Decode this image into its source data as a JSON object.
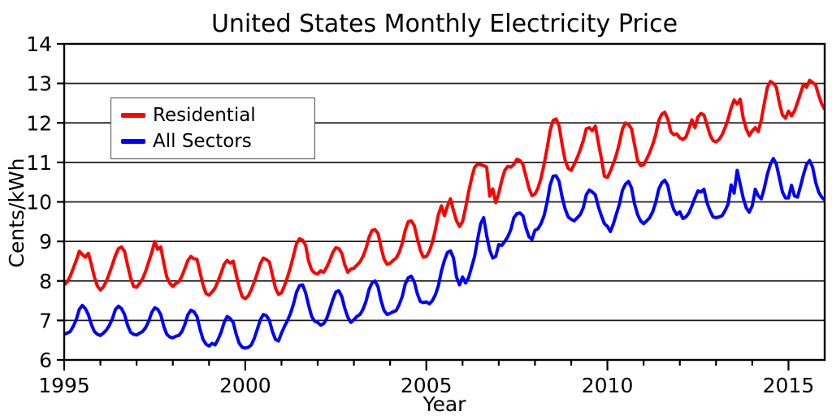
{
  "chart_data": {
    "type": "line",
    "title": "United States Monthly Electricity Price",
    "xlabel": "Year",
    "ylabel": "Cents/kWh",
    "xlim": [
      1995,
      2016
    ],
    "ylim": [
      6,
      14
    ],
    "yticks": [
      6,
      7,
      8,
      9,
      10,
      11,
      12,
      13,
      14
    ],
    "xticks_major": [
      1995,
      2000,
      2005,
      2010,
      2015
    ],
    "xticks_minor": [
      1996,
      1997,
      1998,
      1999,
      2001,
      2002,
      2003,
      2004,
      2006,
      2007,
      2008,
      2009,
      2011,
      2012,
      2013,
      2014
    ],
    "grid": "horizontal-only",
    "grid_color": "#1a1a1a",
    "spine_color": "#000000",
    "legend_position": "upper-left",
    "x_start": 1995.0,
    "x_step_years": 0.083333,
    "series": [
      {
        "name": "Residential",
        "color": "#ff0000",
        "values": [
          7.9,
          7.98,
          8.12,
          8.32,
          8.52,
          8.75,
          8.67,
          8.6,
          8.7,
          8.42,
          8.1,
          7.87,
          7.77,
          7.85,
          8.0,
          8.2,
          8.42,
          8.65,
          8.82,
          8.86,
          8.75,
          8.4,
          8.08,
          7.86,
          7.84,
          7.94,
          8.06,
          8.25,
          8.48,
          8.72,
          9.0,
          8.8,
          8.86,
          8.45,
          8.1,
          7.94,
          7.86,
          7.94,
          7.98,
          8.12,
          8.32,
          8.52,
          8.62,
          8.56,
          8.55,
          8.22,
          7.9,
          7.68,
          7.64,
          7.72,
          7.82,
          8.0,
          8.2,
          8.42,
          8.52,
          8.45,
          8.5,
          8.16,
          7.84,
          7.6,
          7.55,
          7.62,
          7.78,
          7.98,
          8.2,
          8.44,
          8.58,
          8.54,
          8.48,
          8.15,
          7.82,
          7.66,
          7.7,
          7.88,
          8.1,
          8.35,
          8.65,
          8.95,
          9.07,
          9.03,
          8.9,
          8.5,
          8.28,
          8.2,
          8.18,
          8.26,
          8.22,
          8.35,
          8.52,
          8.72,
          8.84,
          8.82,
          8.7,
          8.4,
          8.22,
          8.3,
          8.32,
          8.4,
          8.48,
          8.62,
          8.82,
          9.1,
          9.28,
          9.3,
          9.2,
          8.85,
          8.55,
          8.42,
          8.45,
          8.52,
          8.58,
          8.72,
          8.95,
          9.28,
          9.5,
          9.52,
          9.4,
          9.08,
          8.78,
          8.6,
          8.62,
          8.75,
          8.98,
          9.3,
          9.68,
          9.9,
          9.65,
          9.9,
          10.08,
          9.78,
          9.52,
          9.38,
          9.5,
          9.85,
          10.25,
          10.6,
          10.88,
          10.96,
          10.94,
          10.92,
          10.88,
          10.15,
          10.33,
          9.98,
          10.22,
          10.55,
          10.8,
          10.9,
          10.88,
          10.95,
          11.08,
          11.05,
          10.95,
          10.65,
          10.35,
          10.16,
          10.2,
          10.35,
          10.6,
          10.95,
          11.35,
          11.8,
          12.06,
          12.1,
          11.92,
          11.45,
          11.05,
          10.85,
          10.8,
          10.95,
          11.12,
          11.32,
          11.55,
          11.85,
          11.88,
          11.8,
          11.92,
          11.5,
          11.1,
          10.65,
          10.62,
          10.78,
          10.98,
          11.2,
          11.5,
          11.85,
          12.0,
          11.96,
          11.85,
          11.45,
          11.05,
          10.92,
          10.94,
          11.08,
          11.25,
          11.45,
          11.7,
          12.05,
          12.22,
          12.27,
          12.1,
          11.78,
          11.7,
          11.72,
          11.62,
          11.58,
          11.64,
          11.85,
          12.08,
          11.88,
          12.15,
          12.24,
          12.2,
          11.95,
          11.7,
          11.55,
          11.52,
          11.58,
          11.7,
          11.88,
          12.1,
          12.38,
          12.58,
          12.48,
          12.6,
          12.12,
          11.85,
          11.68,
          11.8,
          11.88,
          11.78,
          12.08,
          12.5,
          12.9,
          13.05,
          13.0,
          12.9,
          12.5,
          12.2,
          12.12,
          12.3,
          12.18,
          12.3,
          12.52,
          12.75,
          12.98,
          12.9,
          13.08,
          13.02,
          12.96,
          12.7,
          12.48,
          12.35
        ]
      },
      {
        "name": "All Sectors",
        "color": "#0000ff",
        "values": [
          6.65,
          6.68,
          6.72,
          6.85,
          7.02,
          7.28,
          7.38,
          7.3,
          7.15,
          6.9,
          6.72,
          6.65,
          6.62,
          6.68,
          6.76,
          6.88,
          7.05,
          7.28,
          7.36,
          7.3,
          7.15,
          6.88,
          6.7,
          6.65,
          6.63,
          6.68,
          6.72,
          6.82,
          6.98,
          7.2,
          7.32,
          7.28,
          7.15,
          6.85,
          6.65,
          6.58,
          6.56,
          6.6,
          6.62,
          6.72,
          6.9,
          7.15,
          7.26,
          7.22,
          7.1,
          6.78,
          6.52,
          6.4,
          6.35,
          6.42,
          6.38,
          6.52,
          6.7,
          6.95,
          7.1,
          7.05,
          6.95,
          6.65,
          6.42,
          6.32,
          6.3,
          6.32,
          6.38,
          6.55,
          6.78,
          7.02,
          7.15,
          7.12,
          7.0,
          6.72,
          6.52,
          6.48,
          6.68,
          6.85,
          7.0,
          7.18,
          7.42,
          7.72,
          7.88,
          7.9,
          7.7,
          7.38,
          7.1,
          6.98,
          6.95,
          6.88,
          6.92,
          7.05,
          7.28,
          7.52,
          7.72,
          7.75,
          7.6,
          7.3,
          7.08,
          6.95,
          7.02,
          7.1,
          7.15,
          7.28,
          7.48,
          7.78,
          7.95,
          8.0,
          7.85,
          7.5,
          7.25,
          7.15,
          7.18,
          7.22,
          7.25,
          7.4,
          7.6,
          7.92,
          8.08,
          8.12,
          7.98,
          7.68,
          7.48,
          7.45,
          7.47,
          7.42,
          7.5,
          7.65,
          7.88,
          8.25,
          8.52,
          8.72,
          8.76,
          8.58,
          8.1,
          7.9,
          8.1,
          7.95,
          8.08,
          8.35,
          8.62,
          9.05,
          9.45,
          9.6,
          9.15,
          8.78,
          8.58,
          8.62,
          8.92,
          8.9,
          9.0,
          9.12,
          9.3,
          9.6,
          9.7,
          9.72,
          9.65,
          9.35,
          9.12,
          9.05,
          9.28,
          9.32,
          9.45,
          9.65,
          9.98,
          10.42,
          10.65,
          10.66,
          10.52,
          10.12,
          9.82,
          9.62,
          9.56,
          9.52,
          9.6,
          9.68,
          9.85,
          10.18,
          10.3,
          10.25,
          10.18,
          9.88,
          9.65,
          9.45,
          9.38,
          9.25,
          9.45,
          9.7,
          9.95,
          10.3,
          10.45,
          10.52,
          10.35,
          9.95,
          9.68,
          9.52,
          9.45,
          9.52,
          9.6,
          9.75,
          9.98,
          10.32,
          10.48,
          10.55,
          10.42,
          10.05,
          9.8,
          9.68,
          9.75,
          9.58,
          9.62,
          9.72,
          9.9,
          10.1,
          10.28,
          10.25,
          10.32,
          9.98,
          9.78,
          9.62,
          9.6,
          9.62,
          9.65,
          9.78,
          9.95,
          10.43,
          10.22,
          10.8,
          10.45,
          10.1,
          9.85,
          9.74,
          9.9,
          10.32,
          10.15,
          10.08,
          10.35,
          10.7,
          10.95,
          11.1,
          10.95,
          10.6,
          10.25,
          10.1,
          10.1,
          10.42,
          10.15,
          10.12,
          10.4,
          10.7,
          10.95,
          11.05,
          10.88,
          10.5,
          10.25,
          10.12,
          10.05
        ]
      }
    ],
    "legend": {
      "entries": [
        {
          "label": "Residential"
        },
        {
          "label": "All Sectors"
        }
      ]
    }
  }
}
